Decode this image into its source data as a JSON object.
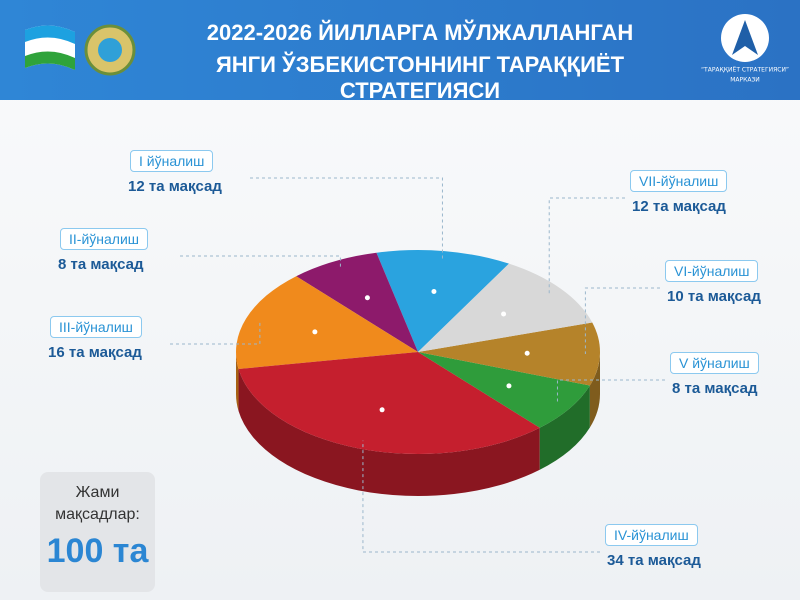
{
  "header": {
    "title_line1": "2022-2026 ЙИЛЛАРГА МЎЛЖАЛЛАНГАН",
    "title_line2": "ЯНГИ ЎЗБЕКИСТОННИНГ ТАРАҚҚИЁТ СТРАТЕГИЯСИ",
    "logo_text": "“ТАРАҚҚИЁТ СТРАТЕГИЯСИ”",
    "logo_subtext": "МАРКАЗИ"
  },
  "chart_data": {
    "type": "pie",
    "categories": [
      "I йўналиш",
      "II-йўналиш",
      "III-йўналиш",
      "IV-йўналиш",
      "V йўналиш",
      "VI-йўналиш",
      "VII-йўналиш"
    ],
    "values": [
      12,
      8,
      16,
      34,
      8,
      10,
      12
    ],
    "value_labels": [
      "12 та мақсад",
      "8 та мақсад",
      "16 та мақсад",
      "34 та мақсад",
      "8 та мақсад",
      "10 та мақсад",
      "12 та мақсад"
    ],
    "colors": [
      "#2aa3df",
      "#8d1a6b",
      "#f08a1c",
      "#c51f2e",
      "#2f9c3b",
      "#b5832a",
      "#d8d8d8"
    ]
  },
  "total": {
    "label": "Жами мақсадлар:",
    "value": "100 та"
  }
}
